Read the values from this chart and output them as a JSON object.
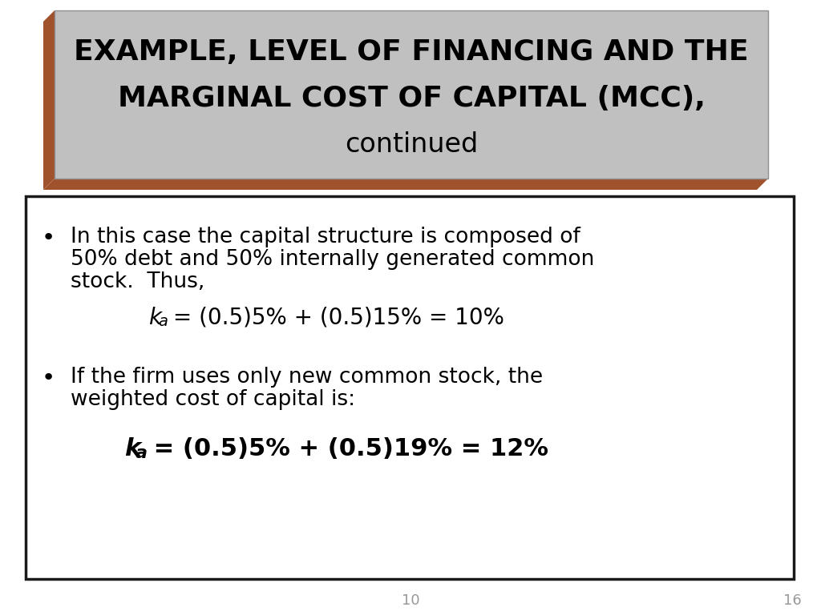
{
  "title_line1": "EXAMPLE, LEVEL OF FINANCING AND THE",
  "title_line2": "MARGINAL COST OF CAPITAL (MCC),",
  "title_line3": "continued",
  "title_bg_color": "#C0C0C0",
  "title_shadow_color": "#A0522D",
  "bullet1_line1": "In this case the capital structure is composed of",
  "bullet1_line2": "50% debt and 50% internally generated common",
  "bullet1_line3": "stock.  Thus,",
  "formula1_prefix": "k",
  "formula1_sub": "a",
  "formula1_suffix": " = (0.5)5% + (0.5)15% = 10%",
  "bullet2_line1": "If the firm uses only new common stock, the",
  "bullet2_line2": "weighted cost of capital is:",
  "formula2_prefix": "k",
  "formula2_sub": "a",
  "formula2_suffix": " = (0.5)5% + (0.5)19% = 12%",
  "page_left": "10",
  "page_right": "16",
  "bg_color": "#FFFFFF",
  "box_border_color": "#1a1a1a",
  "text_color": "#000000",
  "shadow_color": "#808080",
  "title_font_size": 26,
  "title_continued_font_size": 24,
  "body_font_size": 19,
  "formula1_font_size": 20,
  "formula2_font_size": 22
}
